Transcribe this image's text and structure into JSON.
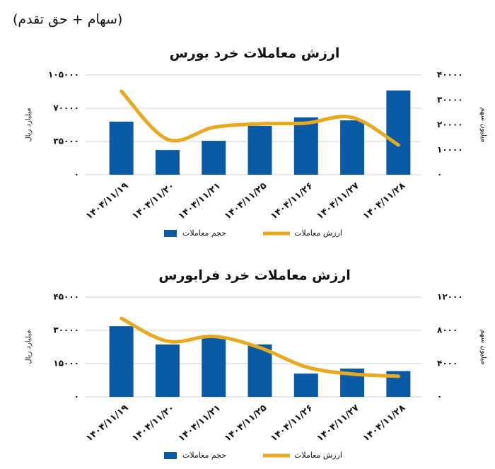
{
  "header": {
    "title": "(سهام + حق تقدم)"
  },
  "chart_data": [
    {
      "type": "combo",
      "title": "ارزش معاملات خرد بورس",
      "categories": [
        "۱۴۰۴/۱۱/۱۹",
        "۱۴۰۴/۱۱/۲۰",
        "۱۴۰۴/۱۱/۲۱",
        "۱۴۰۴/۱۱/۲۵",
        "۱۴۰۴/۱۱/۲۶",
        "۱۴۰۴/۱۱/۲۷",
        "۱۴۰۴/۱۱/۲۸"
      ],
      "series": [
        {
          "name": "حجم معاملات",
          "color": "#0b5aa6",
          "type": "bar",
          "axis": "y2",
          "values": [
            21300,
            9900,
            13600,
            19600,
            23000,
            21800,
            33800
          ]
        },
        {
          "name": "ارزش معاملات",
          "color": "#e6a91f",
          "type": "line",
          "smooth": true,
          "values": [
            87900,
            37200,
            49900,
            53600,
            54400,
            60300,
            31300
          ]
        }
      ],
      "ylabel": "میلیارد ریال",
      "y2label": "میلیون سهم",
      "ylim": [
        0,
        105000
      ],
      "yticks": [
        {
          "value": 0,
          "label": "۰"
        },
        {
          "value": 35000,
          "label": "۳۵۰۰۰"
        },
        {
          "value": 70000,
          "label": "۷۰۰۰۰"
        },
        {
          "value": 105000,
          "label": "۱۰۵۰۰۰"
        }
      ],
      "y2lim": [
        0,
        40000
      ],
      "y2ticks": [
        {
          "value": 0,
          "label": "۰"
        },
        {
          "value": 10000,
          "label": "۱۰۰۰۰"
        },
        {
          "value": 20000,
          "label": "۲۰۰۰۰"
        },
        {
          "value": 30000,
          "label": "۳۰۰۰۰"
        },
        {
          "value": 40000,
          "label": "۴۰۰۰۰"
        }
      ],
      "grid": true,
      "legend": "bottom"
    },
    {
      "type": "combo",
      "title": "ارزش معاملات خرد فرابورس",
      "categories": [
        "۱۴۰۴/۱۱/۱۹",
        "۱۴۰۴/۱۱/۲۰",
        "۱۴۰۴/۱۱/۲۱",
        "۱۴۰۴/۱۱/۲۵",
        "۱۴۰۴/۱۱/۲۶",
        "۱۴۰۴/۱۱/۲۷",
        "۱۴۰۴/۱۱/۲۸"
      ],
      "series": [
        {
          "name": "حجم معاملات",
          "color": "#0b5aa6",
          "type": "bar",
          "axis": "y2",
          "values": [
            8500,
            6300,
            7100,
            6300,
            2800,
            3400,
            3100
          ]
        },
        {
          "name": "ارزش معاملات",
          "color": "#e6a91f",
          "type": "line",
          "smooth": true,
          "values": [
            35400,
            25100,
            27300,
            22200,
            13500,
            10300,
            9300
          ]
        }
      ],
      "ylabel": "میلیارد ریال",
      "y2label": "میلیون سهم",
      "ylim": [
        0,
        45000
      ],
      "yticks": [
        {
          "value": 0,
          "label": "۰"
        },
        {
          "value": 15000,
          "label": "۱۵۰۰۰"
        },
        {
          "value": 30000,
          "label": "۳۰۰۰۰"
        },
        {
          "value": 45000,
          "label": "۴۵۰۰۰"
        }
      ],
      "y2lim": [
        0,
        12000
      ],
      "y2ticks": [
        {
          "value": 0,
          "label": "۰"
        },
        {
          "value": 4000,
          "label": "۴۰۰۰"
        },
        {
          "value": 8000,
          "label": "۸۰۰۰"
        },
        {
          "value": 12000,
          "label": "۱۲۰۰۰"
        }
      ],
      "grid": true,
      "legend": "bottom"
    }
  ]
}
